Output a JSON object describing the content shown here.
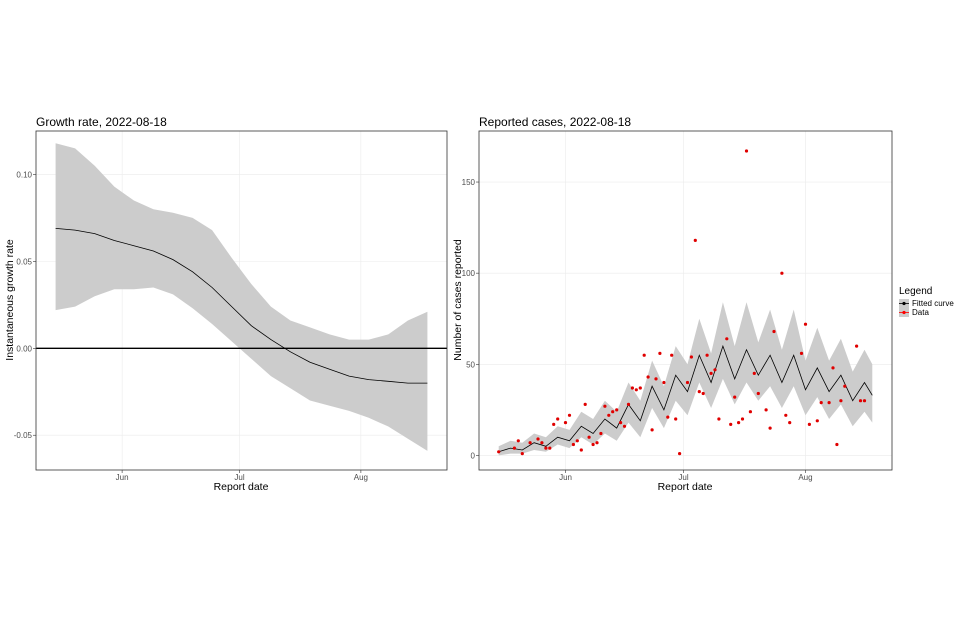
{
  "chart_data": [
    {
      "type": "line",
      "title": "Growth rate, 2022-08-18",
      "xlabel": "Report date",
      "ylabel": "Instantaneous growth rate",
      "x_axis": "date",
      "xlim": [
        "2022-05-10",
        "2022-08-23"
      ],
      "ylim": [
        -0.07,
        0.125
      ],
      "x_ticks": [
        {
          "date": "2022-06-01",
          "label": "Jun"
        },
        {
          "date": "2022-07-01",
          "label": "Jul"
        },
        {
          "date": "2022-08-01",
          "label": "Aug"
        }
      ],
      "y_ticks": [
        {
          "value": 0.1,
          "label": "0.10"
        },
        {
          "value": 0.05,
          "label": "0.05"
        },
        {
          "value": 0.0,
          "label": "0.00"
        },
        {
          "value": -0.05,
          "label": "-0.05"
        }
      ],
      "grid": true,
      "reference_line": {
        "value": 0
      },
      "colors": {
        "line": "#000000",
        "ribbon": "#cccccc"
      },
      "series": [
        {
          "x": [
            "2022-05-15",
            "2022-05-20",
            "2022-05-25",
            "2022-05-30",
            "2022-06-04",
            "2022-06-09",
            "2022-06-14",
            "2022-06-19",
            "2022-06-24",
            "2022-06-29",
            "2022-07-04",
            "2022-07-09",
            "2022-07-14",
            "2022-07-19",
            "2022-07-24",
            "2022-07-29",
            "2022-08-03",
            "2022-08-08",
            "2022-08-13",
            "2022-08-18"
          ],
          "y": [
            0.069,
            0.068,
            0.066,
            0.062,
            0.059,
            0.056,
            0.051,
            0.044,
            0.035,
            0.024,
            0.013,
            0.005,
            -0.002,
            -0.008,
            -0.012,
            -0.016,
            -0.018,
            -0.019,
            -0.02,
            -0.02
          ],
          "lower": [
            0.022,
            0.024,
            0.03,
            0.034,
            0.034,
            0.035,
            0.031,
            0.023,
            0.014,
            0.004,
            -0.006,
            -0.016,
            -0.023,
            -0.03,
            -0.033,
            -0.036,
            -0.04,
            -0.045,
            -0.052,
            -0.059
          ],
          "upper": [
            0.118,
            0.115,
            0.105,
            0.093,
            0.085,
            0.08,
            0.078,
            0.075,
            0.068,
            0.052,
            0.037,
            0.024,
            0.016,
            0.012,
            0.008,
            0.005,
            0.005,
            0.008,
            0.016,
            0.021
          ]
        }
      ]
    },
    {
      "type": "line",
      "title": "Reported cases, 2022-08-18",
      "xlabel": "Report date",
      "ylabel": "Number of cases reported",
      "x_axis": "date",
      "xlim": [
        "2022-05-10",
        "2022-08-23"
      ],
      "ylim": [
        -8,
        178
      ],
      "x_ticks": [
        {
          "date": "2022-06-01",
          "label": "Jun"
        },
        {
          "date": "2022-07-01",
          "label": "Jul"
        },
        {
          "date": "2022-08-01",
          "label": "Aug"
        }
      ],
      "y_ticks": [
        {
          "value": 0,
          "label": "0"
        },
        {
          "value": 50,
          "label": "50"
        },
        {
          "value": 100,
          "label": "100"
        },
        {
          "value": 150,
          "label": "150"
        }
      ],
      "grid": true,
      "legend": {
        "title": "Legend",
        "placement": "right",
        "entries": [
          {
            "label": "Fitted curve",
            "color": "#000000"
          },
          {
            "label": "Data",
            "color": "#ff0000"
          }
        ]
      },
      "colors": {
        "line": "#000000",
        "ribbon": "#cccccc",
        "points": "#e00000"
      },
      "series": [
        {
          "name": "Fitted curve",
          "x": [
            "2022-05-15",
            "2022-05-18",
            "2022-05-21",
            "2022-05-24",
            "2022-05-27",
            "2022-05-30",
            "2022-06-02",
            "2022-06-05",
            "2022-06-08",
            "2022-06-11",
            "2022-06-14",
            "2022-06-17",
            "2022-06-20",
            "2022-06-23",
            "2022-06-26",
            "2022-06-29",
            "2022-07-02",
            "2022-07-05",
            "2022-07-08",
            "2022-07-11",
            "2022-07-14",
            "2022-07-17",
            "2022-07-20",
            "2022-07-23",
            "2022-07-26",
            "2022-07-29",
            "2022-08-01",
            "2022-08-04",
            "2022-08-07",
            "2022-08-10",
            "2022-08-13",
            "2022-08-16",
            "2022-08-18"
          ],
          "y": [
            2,
            4,
            3,
            7,
            5,
            10,
            8,
            16,
            12,
            20,
            15,
            28,
            19,
            38,
            25,
            44,
            35,
            55,
            40,
            60,
            42,
            58,
            44,
            55,
            40,
            55,
            36,
            48,
            35,
            44,
            30,
            40,
            33
          ],
          "lower": [
            0,
            1,
            1,
            3,
            2,
            6,
            4,
            10,
            6,
            12,
            8,
            18,
            10,
            26,
            15,
            30,
            22,
            40,
            26,
            42,
            28,
            40,
            30,
            38,
            26,
            38,
            22,
            32,
            20,
            28,
            16,
            24,
            18
          ],
          "upper": [
            5,
            8,
            7,
            12,
            10,
            16,
            14,
            24,
            20,
            30,
            24,
            40,
            30,
            52,
            38,
            60,
            50,
            75,
            56,
            84,
            60,
            84,
            62,
            80,
            58,
            80,
            52,
            70,
            52,
            64,
            46,
            58,
            50
          ]
        },
        {
          "name": "Data",
          "x": [
            "2022-05-15",
            "2022-05-19",
            "2022-05-20",
            "2022-05-21",
            "2022-05-23",
            "2022-05-25",
            "2022-05-26",
            "2022-05-27",
            "2022-05-28",
            "2022-05-29",
            "2022-05-30",
            "2022-06-01",
            "2022-06-02",
            "2022-06-03",
            "2022-06-04",
            "2022-06-05",
            "2022-06-06",
            "2022-06-07",
            "2022-06-08",
            "2022-06-09",
            "2022-06-10",
            "2022-06-11",
            "2022-06-12",
            "2022-06-13",
            "2022-06-14",
            "2022-06-15",
            "2022-06-16",
            "2022-06-17",
            "2022-06-18",
            "2022-06-19",
            "2022-06-20",
            "2022-06-21",
            "2022-06-22",
            "2022-06-23",
            "2022-06-24",
            "2022-06-25",
            "2022-06-26",
            "2022-06-27",
            "2022-06-28",
            "2022-06-29",
            "2022-06-30",
            "2022-07-02",
            "2022-07-03",
            "2022-07-04",
            "2022-07-05",
            "2022-07-06",
            "2022-07-07",
            "2022-07-08",
            "2022-07-09",
            "2022-07-10",
            "2022-07-12",
            "2022-07-13",
            "2022-07-14",
            "2022-07-15",
            "2022-07-16",
            "2022-07-17",
            "2022-07-18",
            "2022-07-19",
            "2022-07-20",
            "2022-07-22",
            "2022-07-23",
            "2022-07-24",
            "2022-07-26",
            "2022-07-27",
            "2022-07-28",
            "2022-07-31",
            "2022-08-01",
            "2022-08-02",
            "2022-08-04",
            "2022-08-05",
            "2022-08-07",
            "2022-08-08",
            "2022-08-09",
            "2022-08-10",
            "2022-08-11",
            "2022-08-14",
            "2022-08-15",
            "2022-08-16"
          ],
          "y": [
            2,
            4,
            8,
            1,
            7,
            9,
            7,
            4,
            4,
            17,
            20,
            18,
            22,
            6,
            8,
            3,
            28,
            10,
            6,
            7,
            12,
            27,
            22,
            24,
            25,
            18,
            16,
            28,
            37,
            36,
            37,
            55,
            43,
            14,
            42,
            56,
            40,
            21,
            55,
            20,
            1,
            40,
            54,
            118,
            35,
            34,
            55,
            45,
            47,
            20,
            64,
            17,
            32,
            18,
            20,
            167,
            24,
            45,
            34,
            25,
            15,
            68,
            100,
            22,
            18,
            56,
            72,
            17,
            19,
            29,
            29,
            48,
            6,
            30,
            38,
            60,
            30,
            30
          ]
        }
      ]
    }
  ]
}
